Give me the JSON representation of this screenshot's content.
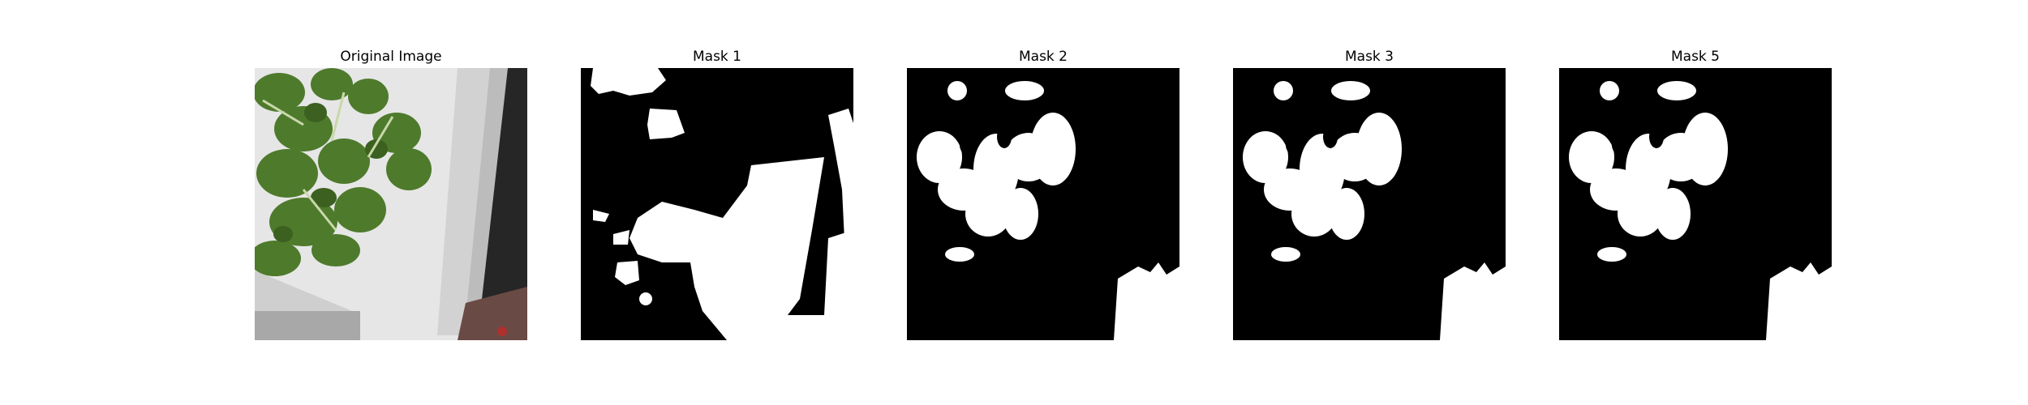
{
  "panels": [
    {
      "title": "Original Image"
    },
    {
      "title": "Mask 1"
    },
    {
      "title": "Mask 2"
    },
    {
      "title": "Mask 3"
    },
    {
      "title": "Mask 5"
    }
  ],
  "colors": {
    "background": "#ffffff",
    "mask_background": "#000000",
    "mask_foreground": "#ffffff",
    "leaf": "#4e7a2c",
    "tray": "#e4e4e4",
    "ground": "#1e1e1e"
  }
}
